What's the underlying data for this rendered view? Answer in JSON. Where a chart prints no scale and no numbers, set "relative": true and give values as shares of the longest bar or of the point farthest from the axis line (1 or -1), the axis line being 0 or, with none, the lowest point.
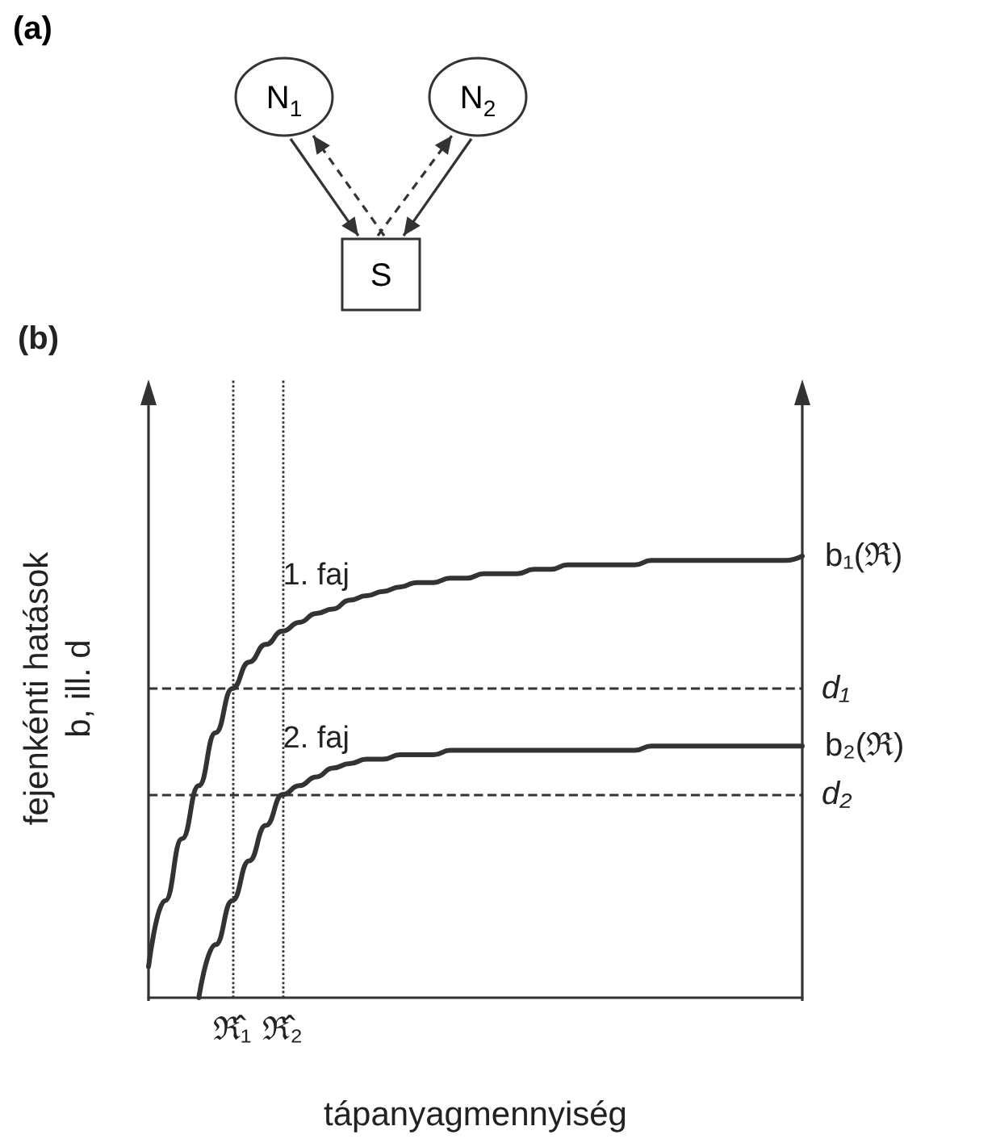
{
  "chart_data": [
    {
      "type": "other",
      "title": "(a)",
      "annotations": [
        "N$_{1}$",
        "N$_{2}$",
        "S"
      ]
    },
    {
      "type": "line",
      "title": "(b)",
      "xlabel": "tápanyagmennyiség",
      "ylabel": "fejenkénti hatások\nb, ill. d",
      "relative": true,
      "tick_labels": "x",
      "categories": [
        null,
        null,
        null,
        null,
        null,
        "ℜ̂₁",
        null,
        null,
        "ℜ̂₂",
        null,
        null,
        null,
        null,
        null,
        null,
        null,
        null,
        null,
        null,
        null,
        null,
        null,
        null,
        null,
        null,
        null,
        null,
        null,
        null,
        null,
        null,
        null,
        null,
        null,
        null,
        null,
        null,
        null,
        null,
        null
      ],
      "series": [
        {
          "name": "1. faj",
          "color": "#333333",
          "values": [
            0.07,
            0.22,
            0.36,
            0.48,
            0.6,
            0.7,
            0.76,
            0.8,
            0.83,
            0.85,
            0.87,
            0.88,
            0.9,
            0.91,
            0.92,
            0.93,
            0.94,
            0.94,
            0.95,
            0.95,
            0.96,
            0.96,
            0.96,
            0.97,
            0.97,
            0.98,
            0.98,
            0.98,
            0.98,
            0.98,
            0.99,
            0.99,
            0.99,
            0.99,
            0.99,
            0.99,
            0.99,
            0.99,
            0.99,
            1
          ]
        },
        {
          "name": "2. faj",
          "color": "#333333",
          "values": [
            null,
            null,
            null,
            0,
            0.12,
            0.22,
            0.31,
            0.39,
            0.46,
            0.48,
            0.5,
            0.52,
            0.53,
            0.54,
            0.54,
            0.55,
            0.55,
            0.55,
            0.56,
            0.56,
            0.56,
            0.56,
            0.56,
            0.56,
            0.56,
            0.56,
            0.56,
            0.56,
            0.56,
            0.56,
            0.57,
            0.57,
            0.57,
            0.57,
            0.57,
            0.57,
            0.57,
            0.57,
            0.57,
            0.57
          ]
        }
      ],
      "ref_lines": [
        {
          "axis": "y",
          "value": 0.7,
          "label": "d₁",
          "line_style": "dashed"
        },
        {
          "axis": "y",
          "value": 0.46,
          "label": "d₂",
          "line_style": "dashed"
        },
        {
          "axis": "x",
          "value": "ℜ̂₁",
          "line_style": "dotted"
        },
        {
          "axis": "x",
          "value": "ℜ̂₂",
          "line_style": "dotted"
        }
      ],
      "annotations": [
        "b₁(ℜ)",
        "b₂(ℜ)"
      ]
    }
  ]
}
